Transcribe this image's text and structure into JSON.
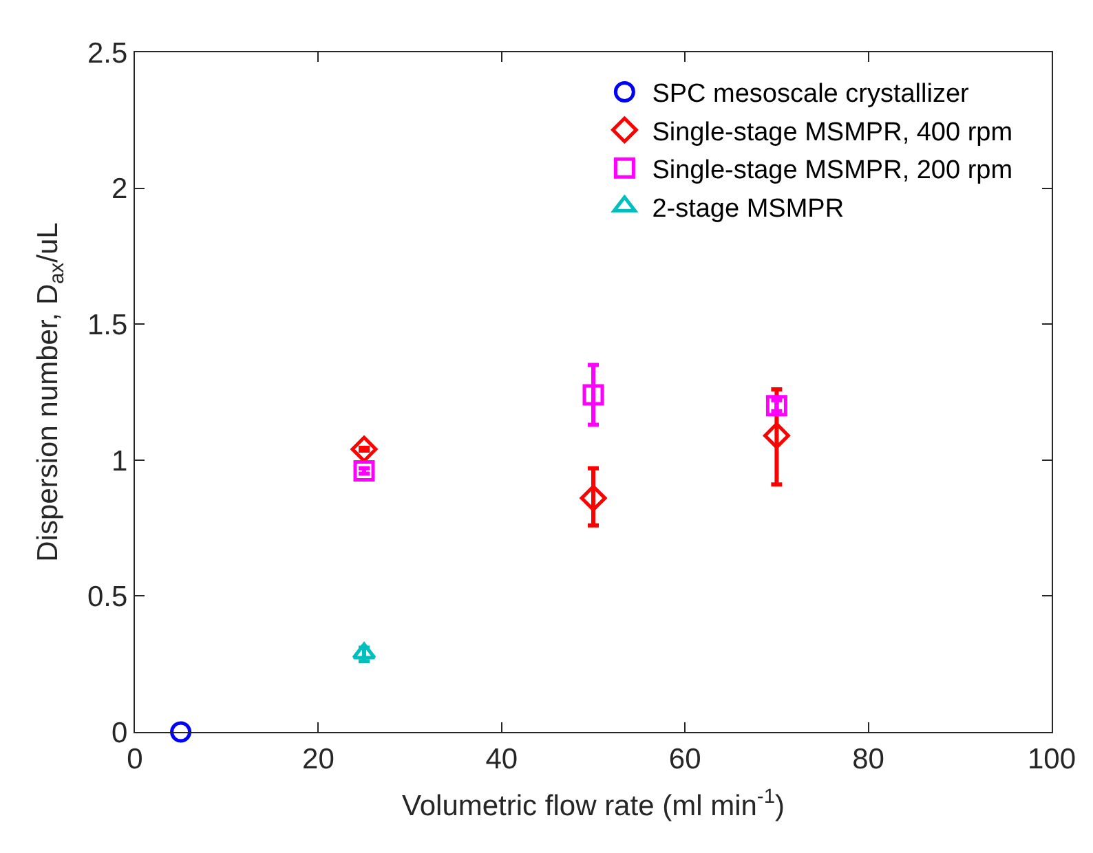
{
  "chart_data": {
    "type": "scatter",
    "xlabel": "Volumetric flow rate (ml min$^{-1}$)",
    "ylabel": "Dispersion number, D$_{ax}$/uL",
    "xlim": [
      0,
      100
    ],
    "xticks": [
      0,
      20,
      40,
      60,
      80,
      100
    ],
    "ylim": [
      0,
      2.5
    ],
    "yticks": [
      0,
      0.5,
      1,
      1.5,
      2,
      2.5
    ],
    "legend": "top right",
    "series": [
      {
        "name": "SPC mesoscale crystallizer",
        "color": "#0000ff",
        "marker": "circle",
        "x": [
          5
        ],
        "values": [
          0
        ]
      },
      {
        "name": "Single-stage MSMPR, 400 rpm",
        "color": "#ff0000",
        "marker": "diamond",
        "x": [
          25,
          50,
          70
        ],
        "values": [
          1.04,
          0.86,
          1.09
        ],
        "errors": [
          [
            1.035,
            1.045
          ],
          [
            0.76,
            0.97
          ],
          [
            0.91,
            1.26
          ]
        ]
      },
      {
        "name": "Single-stage MSMPR, 200 rpm",
        "color": "#ff00ff",
        "marker": "square",
        "x": [
          25,
          50,
          70
        ],
        "values": [
          0.96,
          1.24,
          1.2
        ],
        "errors": [
          [
            0.95,
            0.97
          ],
          [
            1.13,
            1.35
          ],
          [
            1.18,
            1.22
          ]
        ]
      },
      {
        "name": "2-stage MSMPR",
        "color": "#00bfbf",
        "marker": "triangle",
        "x": [
          25
        ],
        "values": [
          0.29
        ],
        "errors": [
          [
            0.26,
            0.31
          ]
        ]
      }
    ]
  }
}
